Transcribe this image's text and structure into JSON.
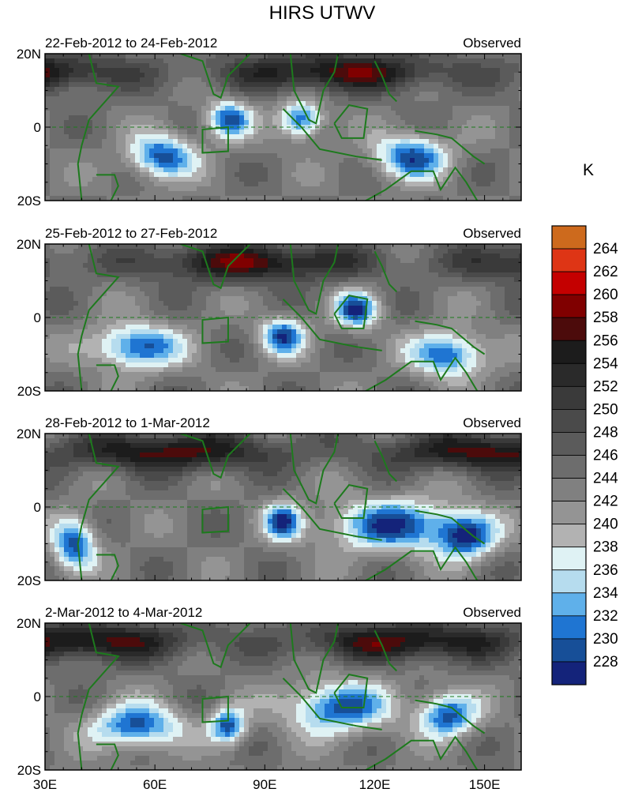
{
  "chart_data": {
    "type": "heatmap",
    "title": "HIRS UTWV",
    "x_ticks": [
      "30E",
      "60E",
      "90E",
      "120E",
      "150E"
    ],
    "x_tick_values": [
      30,
      60,
      90,
      120,
      150
    ],
    "xlim": [
      30,
      160
    ],
    "y_ticks": [
      "20N",
      "0",
      "20S"
    ],
    "y_tick_values": [
      20,
      0,
      -20
    ],
    "ylim": [
      -20,
      20
    ],
    "units_label": "K",
    "colorbar_levels": [
      "264",
      "262",
      "260",
      "258",
      "256",
      "254",
      "252",
      "250",
      "248",
      "246",
      "244",
      "242",
      "240",
      "238",
      "236",
      "234",
      "232",
      "230",
      "228"
    ],
    "colorbar_colors": [
      "#cd6a1d",
      "#de3515",
      "#c40000",
      "#800000",
      "#4c0b0b",
      "#1c1c1c",
      "#2a2a2a",
      "#3a3a3a",
      "#4a4a4a",
      "#5b5b5b",
      "#6d6d6d",
      "#808080",
      "#949494",
      "#b2b2b2",
      "#dff2f4",
      "#b6dcee",
      "#5fb0ea",
      "#1f75d2",
      "#174f98",
      "#14237a"
    ],
    "panels": [
      {
        "left_label": "22-Feb-2012 to 24-Feb-2012",
        "right_label": "Observed"
      },
      {
        "left_label": "25-Feb-2012 to 27-Feb-2012",
        "right_label": "Observed"
      },
      {
        "left_label": "28-Feb-2012 to 1-Mar-2012",
        "right_label": "Observed"
      },
      {
        "left_label": "2-Mar-2012 to 4-Mar-2012",
        "right_label": "Observed"
      }
    ],
    "highlight_box": {
      "lon_range": [
        73,
        80
      ],
      "lat_range": [
        -7,
        0
      ]
    }
  }
}
